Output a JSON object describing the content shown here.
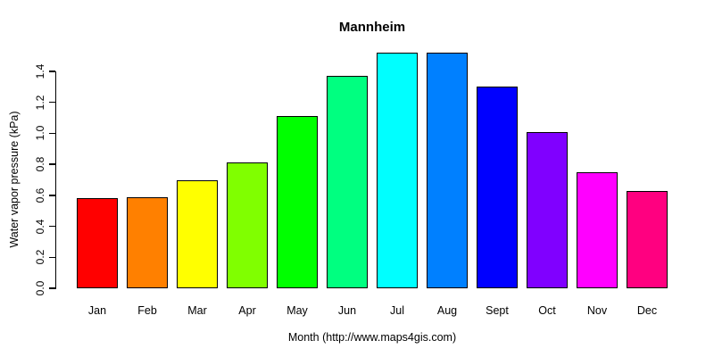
{
  "chart_data": {
    "type": "bar",
    "title": "Mannheim",
    "xlabel": "Month (http://www.maps4gis.com)",
    "ylabel": "Water vapor pressure (kPa)",
    "categories": [
      "Jan",
      "Feb",
      "Mar",
      "Apr",
      "May",
      "Jun",
      "Jul",
      "Aug",
      "Sept",
      "Oct",
      "Nov",
      "Dec"
    ],
    "values": [
      0.58,
      0.59,
      0.7,
      0.81,
      1.11,
      1.37,
      1.52,
      1.52,
      1.3,
      1.01,
      0.75,
      0.63
    ],
    "bar_colors": [
      "#FF0000",
      "#FF8000",
      "#FFFF00",
      "#80FF00",
      "#00FF00",
      "#00FF80",
      "#00FFFF",
      "#0080FF",
      "#0000FF",
      "#8000FF",
      "#FF00FF",
      "#FF0080"
    ],
    "bar_border_color": "#000000",
    "yticks": [
      0.0,
      0.2,
      0.4,
      0.6,
      0.8,
      1.0,
      1.2,
      1.4
    ],
    "ylim": [
      0,
      1.4
    ],
    "grid": false,
    "legend": false,
    "background_color": "#FFFFFF",
    "text_color": "#000000"
  }
}
